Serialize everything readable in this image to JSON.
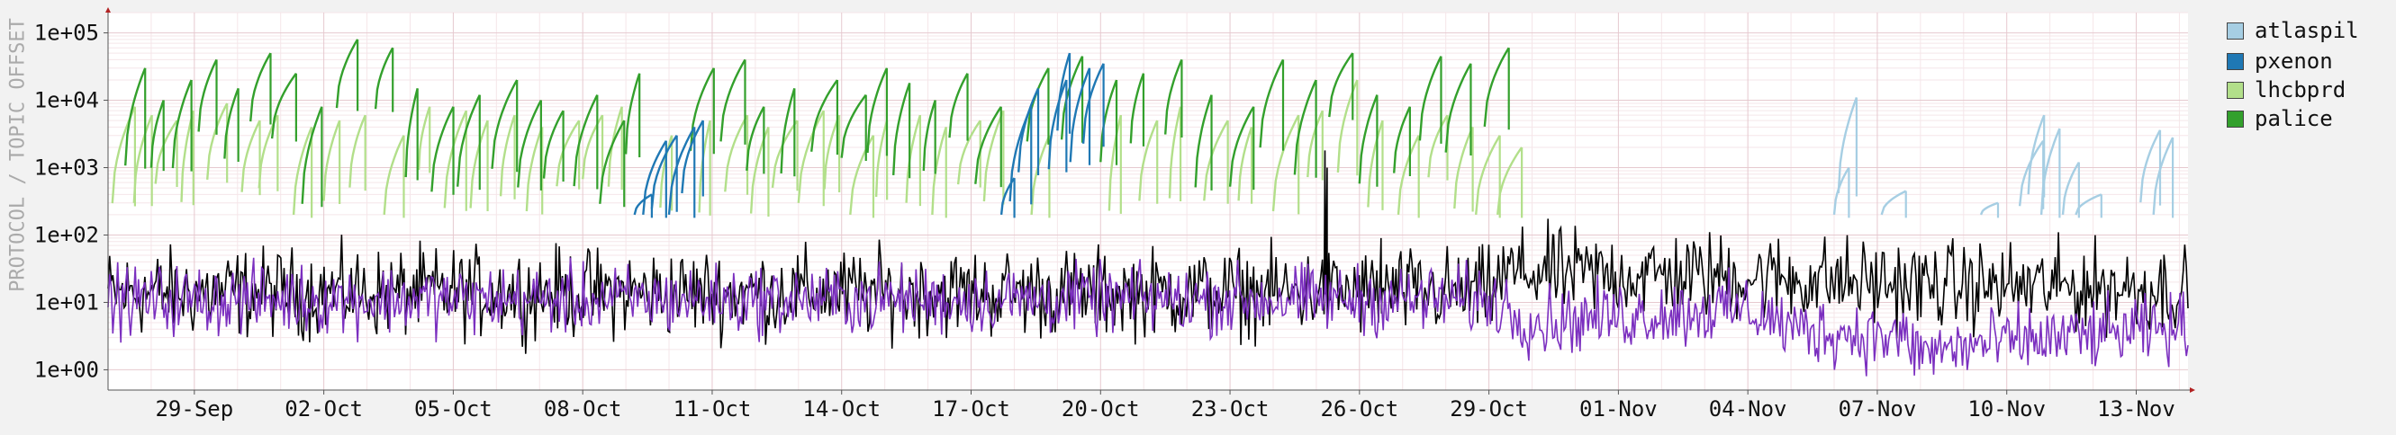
{
  "chart_data": {
    "type": "line",
    "ylabel": "PROTOCOL / TOPIC OFFSET",
    "yscale": "log",
    "ylim": [
      0.5,
      200000
    ],
    "y_ticks": [
      "1e+00",
      "1e+01",
      "1e+02",
      "1e+03",
      "1e+04",
      "1e+05"
    ],
    "x_ticks": [
      "29-Sep",
      "02-Oct",
      "05-Oct",
      "08-Oct",
      "11-Oct",
      "14-Oct",
      "17-Oct",
      "20-Oct",
      "23-Oct",
      "26-Oct",
      "29-Oct",
      "01-Nov",
      "04-Nov",
      "07-Nov",
      "10-Nov",
      "13-Nov"
    ],
    "xlim_days": [
      -2.0,
      46.2
    ],
    "grid": true,
    "legend_position": "right",
    "series": [
      {
        "name": "atlaspil",
        "color": "#a6cee3",
        "kind": "sawtooth",
        "days": [
          38.0,
          38.1,
          39.1,
          41.4,
          42.3,
          42.5,
          42.8,
          43.3,
          43.6,
          45.1,
          45.4
        ],
        "peaks": [
          1000,
          11000,
          450,
          300,
          2500,
          6000,
          3800,
          1200,
          400,
          3600,
          2800
        ]
      },
      {
        "name": "pxenon",
        "color": "#1f78b4",
        "kind": "sawtooth",
        "days": [
          10.2,
          10.4,
          10.6,
          11.0,
          11.3,
          18.7,
          18.9,
          19.1,
          19.8,
          20.0,
          20.3,
          20.6
        ],
        "peaks": [
          400,
          2500,
          3000,
          4000,
          5000,
          700,
          8000,
          15000,
          20000,
          50000,
          30000,
          35000
        ]
      },
      {
        "name": "lhcbprd",
        "color": "#b2df8a",
        "kind": "sawtooth",
        "days": [
          -1.9,
          -1.4,
          -0.9,
          -0.3,
          0.3,
          1.1,
          1.5,
          2.3,
          3.0,
          3.6,
          4.4,
          5.2,
          5.8,
          6.4,
          7.1,
          7.7,
          8.4,
          9.0,
          9.6,
          10.8,
          11.7,
          12.3,
          12.9,
          13.4,
          14.0,
          14.6,
          15.2,
          15.8,
          16.5,
          17.1,
          17.7,
          18.3,
          19.4,
          21.2,
          21.9,
          22.6,
          23.4,
          24.2,
          25.0,
          25.8,
          26.5,
          27.2,
          27.9,
          28.6,
          29.2,
          29.7,
          30.2
        ],
        "peaks": [
          8000,
          6000,
          5000,
          7000,
          9000,
          5000,
          6000,
          4000,
          5000,
          6000,
          3000,
          8000,
          7000,
          5000,
          6000,
          4000,
          5000,
          6000,
          8000,
          3000,
          5000,
          6000,
          4000,
          5000,
          7000,
          6000,
          3000,
          5000,
          6000,
          4000,
          5000,
          7000,
          3000,
          6000,
          5000,
          8000,
          5000,
          4000,
          6000,
          7000,
          20000,
          5000,
          3000,
          6000,
          4000,
          3000,
          2000
        ]
      },
      {
        "name": "palice",
        "color": "#33a02c",
        "kind": "sawtooth",
        "days": [
          -1.6,
          -1.0,
          -0.5,
          0.1,
          0.7,
          1.3,
          1.8,
          2.5,
          3.3,
          4.2,
          4.9,
          5.5,
          6.1,
          6.9,
          7.5,
          8.1,
          8.8,
          9.4,
          10.0,
          11.5,
          12.2,
          12.8,
          13.6,
          14.3,
          15.0,
          15.6,
          16.2,
          16.9,
          17.5,
          18.1,
          19.3,
          20.1,
          21.0,
          21.7,
          22.5,
          23.2,
          24.0,
          24.7,
          25.5,
          26.3,
          27.0,
          27.8,
          28.4,
          29.0,
          29.9
        ],
        "peaks": [
          30000,
          10000,
          20000,
          40000,
          15000,
          50000,
          25000,
          8000,
          80000,
          60000,
          15000,
          8000,
          12000,
          20000,
          10000,
          7000,
          12000,
          5000,
          25000,
          30000,
          40000,
          8000,
          15000,
          20000,
          12000,
          30000,
          18000,
          10000,
          25000,
          8000,
          30000,
          45000,
          20000,
          25000,
          40000,
          12000,
          8000,
          40000,
          20000,
          50000,
          12000,
          8000,
          45000,
          35000,
          60000
        ]
      },
      {
        "name": "",
        "color": "#000000",
        "kind": "noise",
        "segments": [
          [
            -2.0,
            14
          ],
          [
            30.0,
            14
          ],
          [
            30.5,
            28
          ],
          [
            36.0,
            24
          ],
          [
            40.0,
            18
          ],
          [
            46.2,
            16
          ]
        ],
        "spread": 0.32,
        "spikes": [
          [
            26.2,
            1800
          ],
          [
            26.25,
            1000
          ],
          [
            31.5,
            100
          ],
          [
            27.5,
            90
          ]
        ]
      },
      {
        "name": "",
        "color": "#7b2fbf",
        "kind": "noise",
        "segments": [
          [
            -2.0,
            11
          ],
          [
            30.0,
            11
          ],
          [
            31.0,
            5
          ],
          [
            36.0,
            8
          ],
          [
            37.0,
            4
          ],
          [
            39.5,
            3
          ],
          [
            40.0,
            1.8
          ],
          [
            46.0,
            4
          ],
          [
            46.2,
            6
          ]
        ],
        "spread": 0.25,
        "spikes": []
      }
    ]
  }
}
